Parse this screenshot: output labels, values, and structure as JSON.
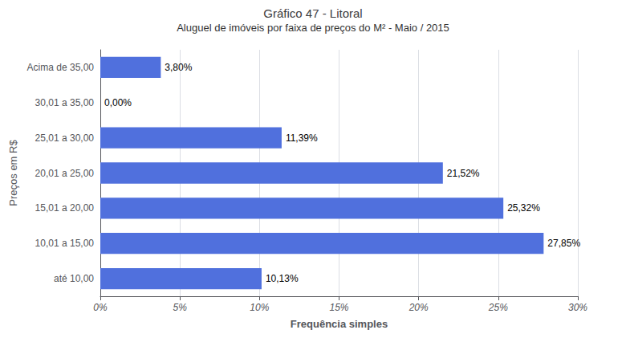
{
  "chart_data": {
    "type": "bar",
    "orientation": "horizontal",
    "title": "Gráfico 47 - Litoral",
    "subtitle": "Aluguel de imóveis por faixa de preços do M² - Maio / 2015",
    "x_label": "Frequência simples",
    "y_label": "Preços em R$",
    "categories": [
      "até 10,00",
      "10,01 a 15,00",
      "15,01 a 20,00",
      "20,01 a 25,00",
      "25,01 a 30,00",
      "30,01 a 35,00",
      "Acima de 35,00"
    ],
    "values": [
      10.13,
      27.85,
      25.32,
      21.52,
      11.39,
      0.0,
      3.8
    ],
    "value_labels": [
      "10,13%",
      "27,85%",
      "25,32%",
      "21,52%",
      "11,39%",
      "0,00%",
      "3,80%"
    ],
    "data_labels": true,
    "xlim": [
      0,
      30
    ],
    "xticks": [
      {
        "value": 0,
        "label": "0%"
      },
      {
        "value": 5,
        "label": "5%"
      },
      {
        "value": 10,
        "label": "10%"
      },
      {
        "value": 15,
        "label": "15%"
      },
      {
        "value": 20,
        "label": "20%"
      },
      {
        "value": 25,
        "label": "25%"
      },
      {
        "value": 30,
        "label": "30%"
      }
    ],
    "grid": true
  }
}
